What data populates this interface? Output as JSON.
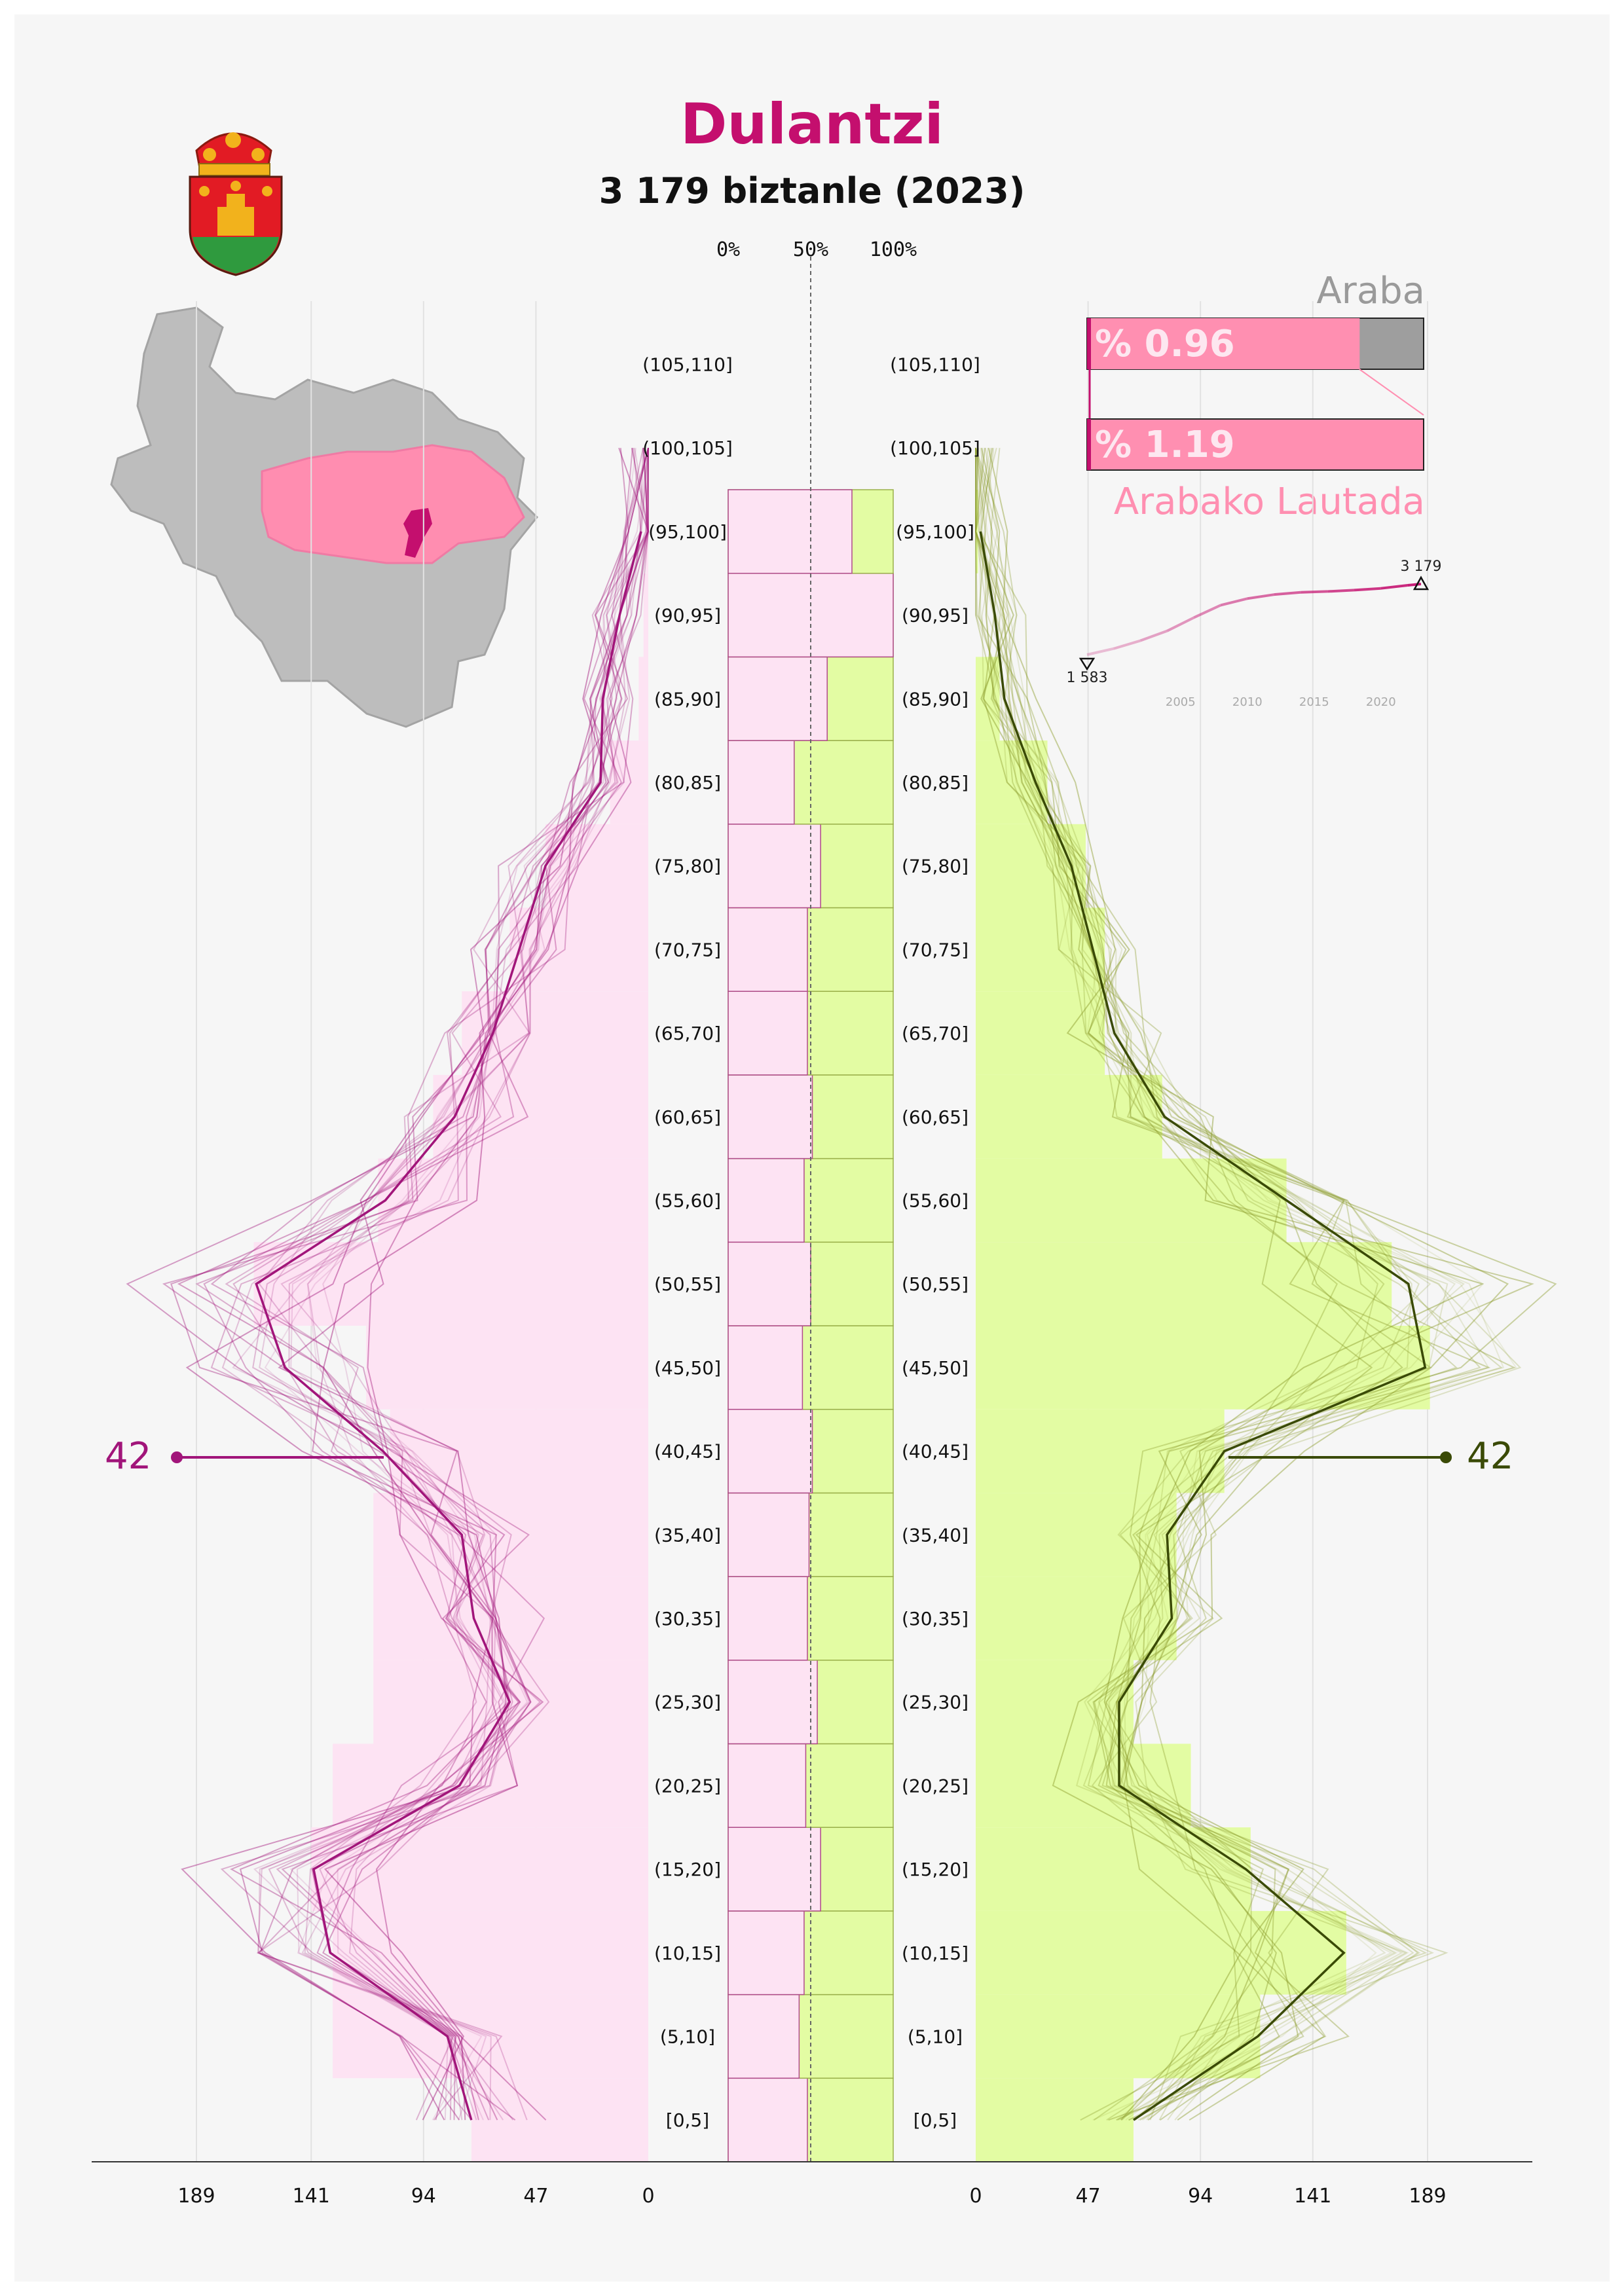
{
  "header": {
    "title": "Dulantzi",
    "subtitle": "3 179 biztanle (2023)"
  },
  "center_axis_labels": [
    "0%",
    "50%",
    "100%"
  ],
  "colors": {
    "title": "#c40f6e",
    "female_line": "#a1157a",
    "female_fill": "#fde3f3",
    "male_line": "#3a4a06",
    "male_fill": "#e3fca3",
    "map_gray": "#bdbdbd",
    "map_region": "#ff8db0",
    "map_town": "#c40f6e",
    "share_pink": "#ff8fb1"
  },
  "shares": {
    "top_label": "Araba",
    "top_value": "% 0.96",
    "bottom_value": "% 1.19",
    "bottom_label": "Arabako Lautada",
    "top_fraction": 0.81,
    "bottom_fraction": 1.0
  },
  "trend": {
    "start_label": "1 583",
    "end_label": "3 179",
    "ticks": [
      "2005",
      "2010",
      "2015",
      "2020"
    ],
    "years": [
      1998,
      2000,
      2002,
      2004,
      2006,
      2008,
      2010,
      2012,
      2014,
      2016,
      2018,
      2020,
      2022,
      2023
    ],
    "population": [
      1583,
      1720,
      1900,
      2120,
      2420,
      2700,
      2850,
      2940,
      2990,
      3010,
      3040,
      3080,
      3150,
      3179
    ]
  },
  "callouts": {
    "female_value": "42",
    "male_value": "42",
    "age_group": "(40,45]"
  },
  "chart_data": {
    "type": "bar",
    "title": "Dulantzi",
    "subtitle": "3 179 biztanle (2023)",
    "orientation": "horizontal population pyramid",
    "categories": [
      "[0,5]",
      "(5,10]",
      "(10,15]",
      "(15,20]",
      "(20,25]",
      "(25,30]",
      "(30,35]",
      "(35,40]",
      "(40,45]",
      "(45,50]",
      "(50,55]",
      "(55,60]",
      "(60,65]",
      "(65,70]",
      "(70,75]",
      "(75,80]",
      "(80,85]",
      "(85,90]",
      "(90,95]",
      "(95,100]",
      "(100,105]",
      "(105,110]"
    ],
    "x_ticks_left": [
      "189",
      "141",
      "94",
      "47",
      "0"
    ],
    "x_ticks_right": [
      "0",
      "47",
      "94",
      "141",
      "189"
    ],
    "xlim": [
      0,
      230
    ],
    "series": [
      {
        "name": "",
        "side": "left",
        "bars": [
          74,
          132,
          132,
          141,
          132,
          115,
          115,
          115,
          108,
          118,
          165,
          113,
          90,
          78,
          58,
          43,
          16,
          4,
          2,
          1,
          0,
          0
        ],
        "line_current": [
          74,
          84,
          133,
          140,
          79,
          58,
          73,
          78,
          111,
          152,
          164,
          110,
          81,
          65,
          54,
          43,
          20,
          19,
          12,
          3,
          0,
          0
        ]
      },
      {
        "name": "",
        "side": "right",
        "bars": [
          66,
          119,
          155,
          115,
          90,
          66,
          84,
          84,
          104,
          190,
          174,
          130,
          78,
          54,
          54,
          46,
          30,
          10,
          0,
          1,
          0,
          0
        ],
        "line_current": [
          66,
          118,
          154,
          113,
          60,
          60,
          82,
          80,
          104,
          188,
          181,
          130,
          79,
          58,
          49,
          40,
          25,
          12,
          8,
          2,
          0,
          0
        ]
      }
    ],
    "center_share_female": [
      0.48,
      0.43,
      0.46,
      0.56,
      0.47,
      0.54,
      0.48,
      0.49,
      0.51,
      0.45,
      0.5,
      0.46,
      0.51,
      0.48,
      0.48,
      0.56,
      0.4,
      0.6,
      1.0,
      0.75,
      0,
      0
    ],
    "grid": true
  }
}
